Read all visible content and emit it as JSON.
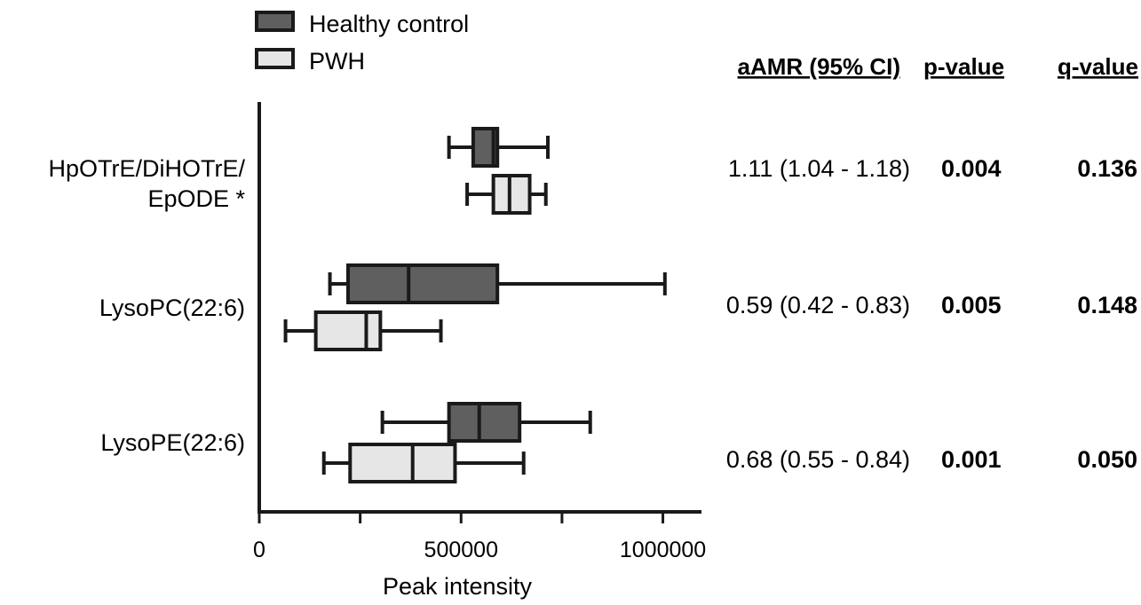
{
  "chart_data": {
    "type": "boxplot",
    "orientation": "horizontal",
    "xlabel": "Peak intensity",
    "xlim": [
      0,
      1100000
    ],
    "xticks": [
      0,
      500000,
      1000000
    ],
    "xtick_labels": [
      "0",
      "500000",
      "1000000"
    ],
    "legend_position": "top-left",
    "series": [
      {
        "name": "Healthy control",
        "color": "#5f5f5f"
      },
      {
        "name": "PWH",
        "color": "#e6e6e6"
      }
    ],
    "categories": [
      {
        "label_lines": [
          "HpOTrE/DiHOTrE/",
          "EpODE *"
        ],
        "boxes": [
          {
            "min": 470000,
            "q1": 530000,
            "median": 580000,
            "q3": 590000,
            "max": 715000
          },
          {
            "min": 515000,
            "q1": 580000,
            "median": 620000,
            "q3": 670000,
            "max": 710000
          }
        ]
      },
      {
        "label_lines": [
          "LysoPC(22:6)"
        ],
        "boxes": [
          {
            "min": 175000,
            "q1": 220000,
            "median": 370000,
            "q3": 590000,
            "max": 1005000
          },
          {
            "min": 65000,
            "q1": 140000,
            "median": 265000,
            "q3": 300000,
            "max": 450000
          }
        ]
      },
      {
        "label_lines": [
          "LysoPE(22:6)"
        ],
        "boxes": [
          {
            "min": 305000,
            "q1": 470000,
            "median": 545000,
            "q3": 645000,
            "max": 820000
          },
          {
            "min": 160000,
            "q1": 225000,
            "median": 380000,
            "q3": 485000,
            "max": 655000
          }
        ]
      }
    ],
    "table": {
      "headers": [
        "aAMR (95% CI)",
        "p-value",
        "q-value"
      ],
      "rows": [
        [
          "1.11 (1.04 - 1.18)",
          "0.004",
          "0.136"
        ],
        [
          "0.59 (0.42 - 0.83)",
          "0.005",
          "0.148"
        ],
        [
          "0.68 (0.55 - 0.84)",
          "0.001",
          "0.050"
        ]
      ]
    }
  }
}
